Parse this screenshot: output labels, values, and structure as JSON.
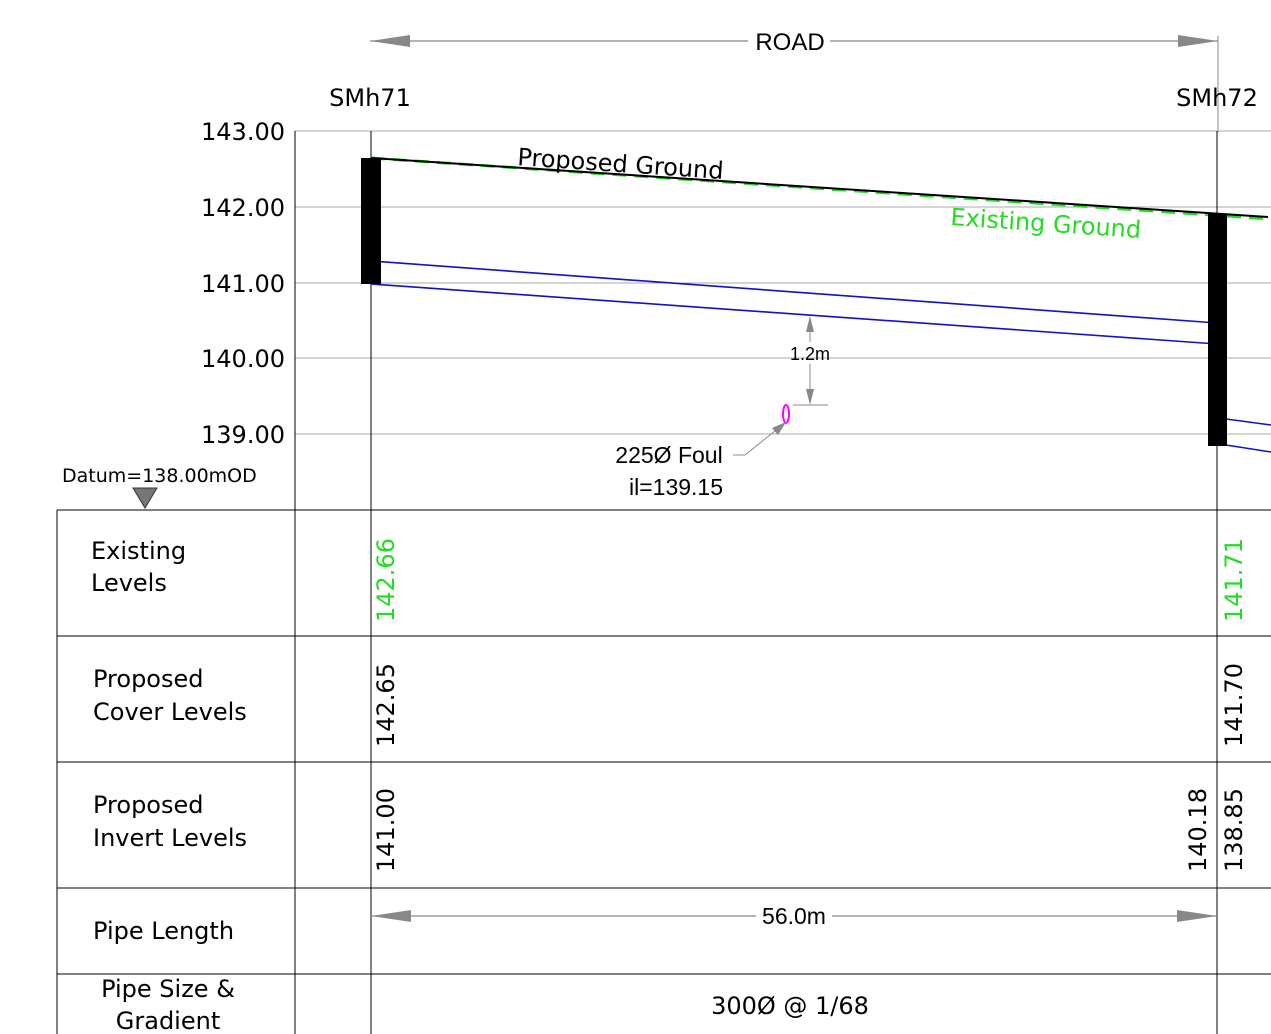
{
  "title": "ROAD",
  "manholes": [
    {
      "name": "SMh71"
    },
    {
      "name": "SMh72"
    }
  ],
  "y_axis": {
    "ticks": [
      "143.00",
      "142.00",
      "141.00",
      "140.00",
      "139.00"
    ],
    "datum": "Datum=138.00mOD"
  },
  "labels": {
    "proposed_ground": "Proposed Ground",
    "existing_ground": "Existing Ground",
    "clearance": "1.2m",
    "crossing_pipe_line1": "225Ø Foul",
    "crossing_pipe_line2": "il=139.15"
  },
  "table": {
    "rows": [
      {
        "label_lines": [
          "Existing",
          "Levels"
        ],
        "values": [
          "142.66",
          "141.71"
        ]
      },
      {
        "label_lines": [
          "Proposed",
          "Cover Levels"
        ],
        "values": [
          "142.65",
          "141.70"
        ]
      },
      {
        "label_lines": [
          "Proposed",
          "Invert Levels"
        ],
        "values": [
          "141.00",
          "140.18",
          "138.85"
        ]
      },
      {
        "label_lines": [
          "Pipe Length"
        ],
        "values": [
          "56.0m"
        ]
      },
      {
        "label_lines": [
          "Pipe Size &",
          "Gradient"
        ],
        "values": [
          "300Ø @ 1/68"
        ]
      }
    ]
  },
  "colors": {
    "existing": "#22dd22",
    "pipe": "#1111cc",
    "crossing": "#ff00ff",
    "grid": "#aaaaaa",
    "dim": "#888888"
  }
}
